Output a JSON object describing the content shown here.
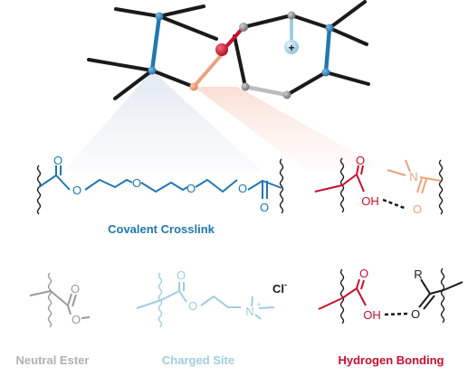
{
  "colors": {
    "black": "#1a1a1a",
    "crosslink_blue": "#2277b0",
    "charged_light_blue": "#9fcde0",
    "hbond_red": "#c8102e",
    "acceptor_salmon": "#eba27e",
    "neutral_gray": "#9a9a9a",
    "legend_gray": "#b0b0b0",
    "bead_gray": "#8e8e8e"
  },
  "labels": {
    "covalent_crosslink": "Covalent Crosslink",
    "neutral_ester": "Neutral Ester",
    "charged_site": "Charged Site",
    "hydrogen_bonding": "Hydrogen Bonding"
  },
  "atoms": {
    "O": "O",
    "OH": "OH",
    "N": "N",
    "R": "R",
    "N_plus": "+",
    "Cl": "Cl",
    "Cl_minus": "-",
    "charge_plus": "+"
  },
  "icons": {
    "cation_bead": "plus-icon",
    "chain_break": "wavy-bond-icon"
  }
}
